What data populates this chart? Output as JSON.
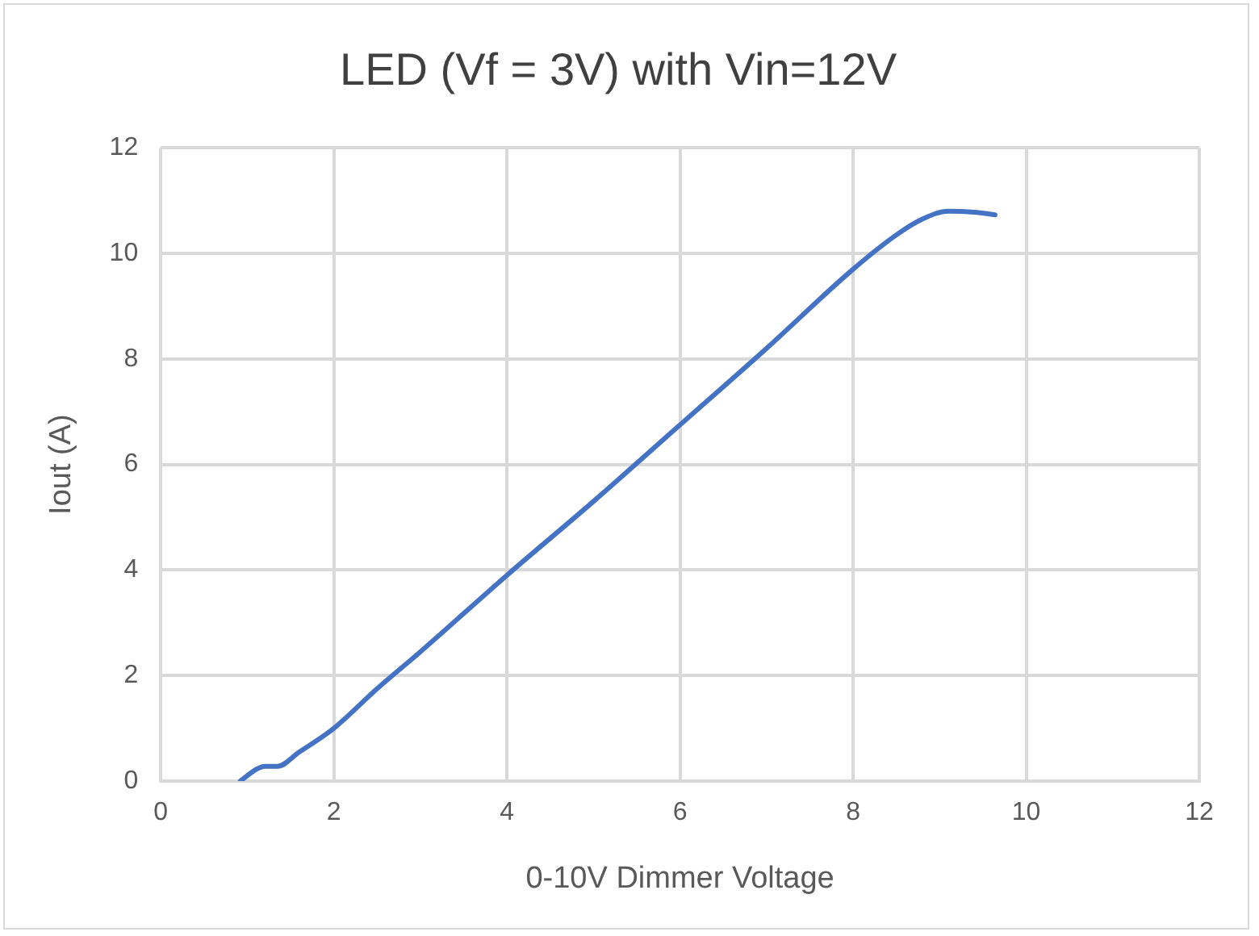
{
  "chart_data": {
    "type": "line",
    "title": "LED (Vf = 3V) with Vin=12V",
    "xlabel": "0-10V Dimmer Voltage",
    "ylabel": "Iout (A)",
    "x": [
      0.92,
      1.1,
      1.2,
      1.35,
      1.6,
      2,
      2.5,
      3,
      4,
      5,
      6,
      7,
      8,
      8.5,
      8.8,
      9.1,
      9.4,
      9.64
    ],
    "series": [
      {
        "color": "#4472c4",
        "values": [
          0,
          0.22,
          0.28,
          0.28,
          0.55,
          1.0,
          1.75,
          2.45,
          3.9,
          5.3,
          6.75,
          8.2,
          9.7,
          10.35,
          10.65,
          10.8,
          10.78,
          10.73
        ]
      }
    ],
    "xlim": [
      0,
      12
    ],
    "xticks": [
      0,
      2,
      4,
      6,
      8,
      10,
      12
    ],
    "ylim": [
      0,
      12
    ],
    "yticks": [
      0,
      2,
      4,
      6,
      8,
      10,
      12
    ],
    "grid": true,
    "legend": false,
    "marker": "none",
    "line_style": "solid"
  }
}
